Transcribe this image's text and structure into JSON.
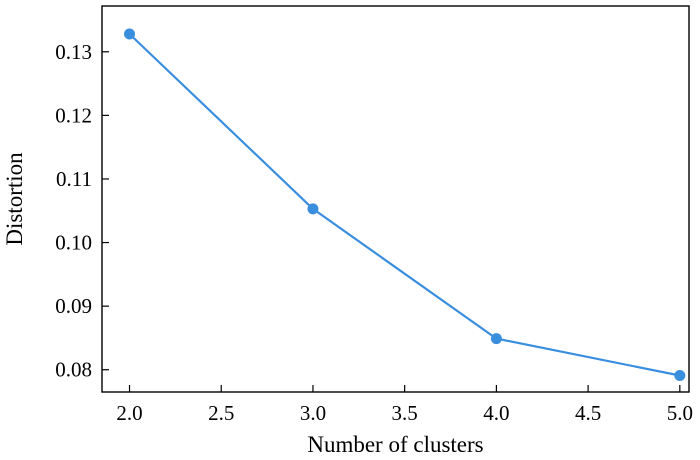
{
  "chart_data": {
    "type": "line",
    "title": "",
    "xlabel": "Number of clusters",
    "ylabel": "Distortion",
    "x": [
      2.0,
      3.0,
      4.0,
      5.0
    ],
    "series": [
      {
        "values": [
          0.1328,
          0.1053,
          0.0849,
          0.0791
        ],
        "color": "#3a8ede"
      }
    ],
    "xlim": [
      1.85,
      5.05
    ],
    "ylim": [
      0.0765,
      0.1372
    ],
    "xticks": [
      2.0,
      2.5,
      3.0,
      3.5,
      4.0,
      4.5,
      5.0
    ],
    "xtick_labels": [
      "2.0",
      "2.5",
      "3.0",
      "3.5",
      "4.0",
      "4.5",
      "5.0"
    ],
    "yticks": [
      0.08,
      0.09,
      0.1,
      0.11,
      0.12,
      0.13
    ],
    "ytick_labels": [
      "0.08",
      "0.09",
      "0.10",
      "0.11",
      "0.12",
      "0.13"
    ],
    "grid": false,
    "legend": "none"
  }
}
